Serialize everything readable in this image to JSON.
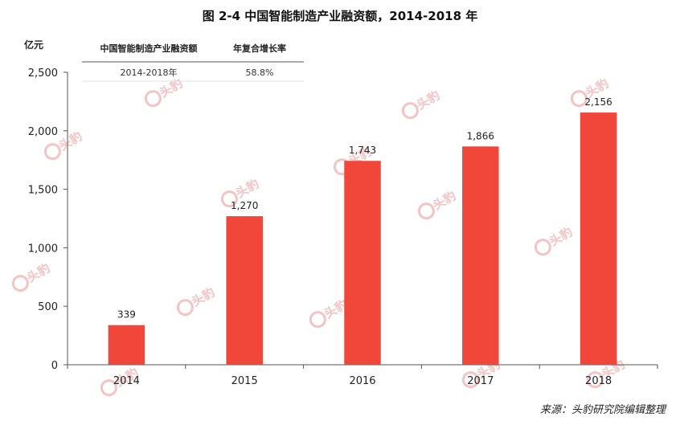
{
  "chart_data": {
    "type": "bar",
    "title": "图 2-4 中国智能制造产业融资额，2014-2018 年",
    "ylabel": "亿元",
    "categories": [
      "2014",
      "2015",
      "2016",
      "2017",
      "2018"
    ],
    "values": [
      339,
      1270,
      1743,
      1866,
      2156
    ],
    "data_labels": [
      "339",
      "1,270",
      "1,743",
      "1,866",
      "2,156"
    ],
    "ylim": [
      0,
      2500
    ],
    "yticks": [
      0,
      500,
      1000,
      1500,
      2000,
      2500
    ],
    "ytick_labels": [
      "0",
      "500",
      "1,000",
      "1,500",
      "2,000",
      "2,500"
    ],
    "grid": false,
    "bar_color": "#f1473b",
    "inset_table": {
      "headers": [
        "中国智能制造产业融资额",
        "年复合增长率"
      ],
      "rows": [
        [
          "2014-2018年",
          "58.8%"
        ]
      ]
    }
  },
  "watermark": {
    "text": "头豹",
    "color": "#f4c3c3"
  },
  "source": "来源：头豹研究院编辑整理"
}
